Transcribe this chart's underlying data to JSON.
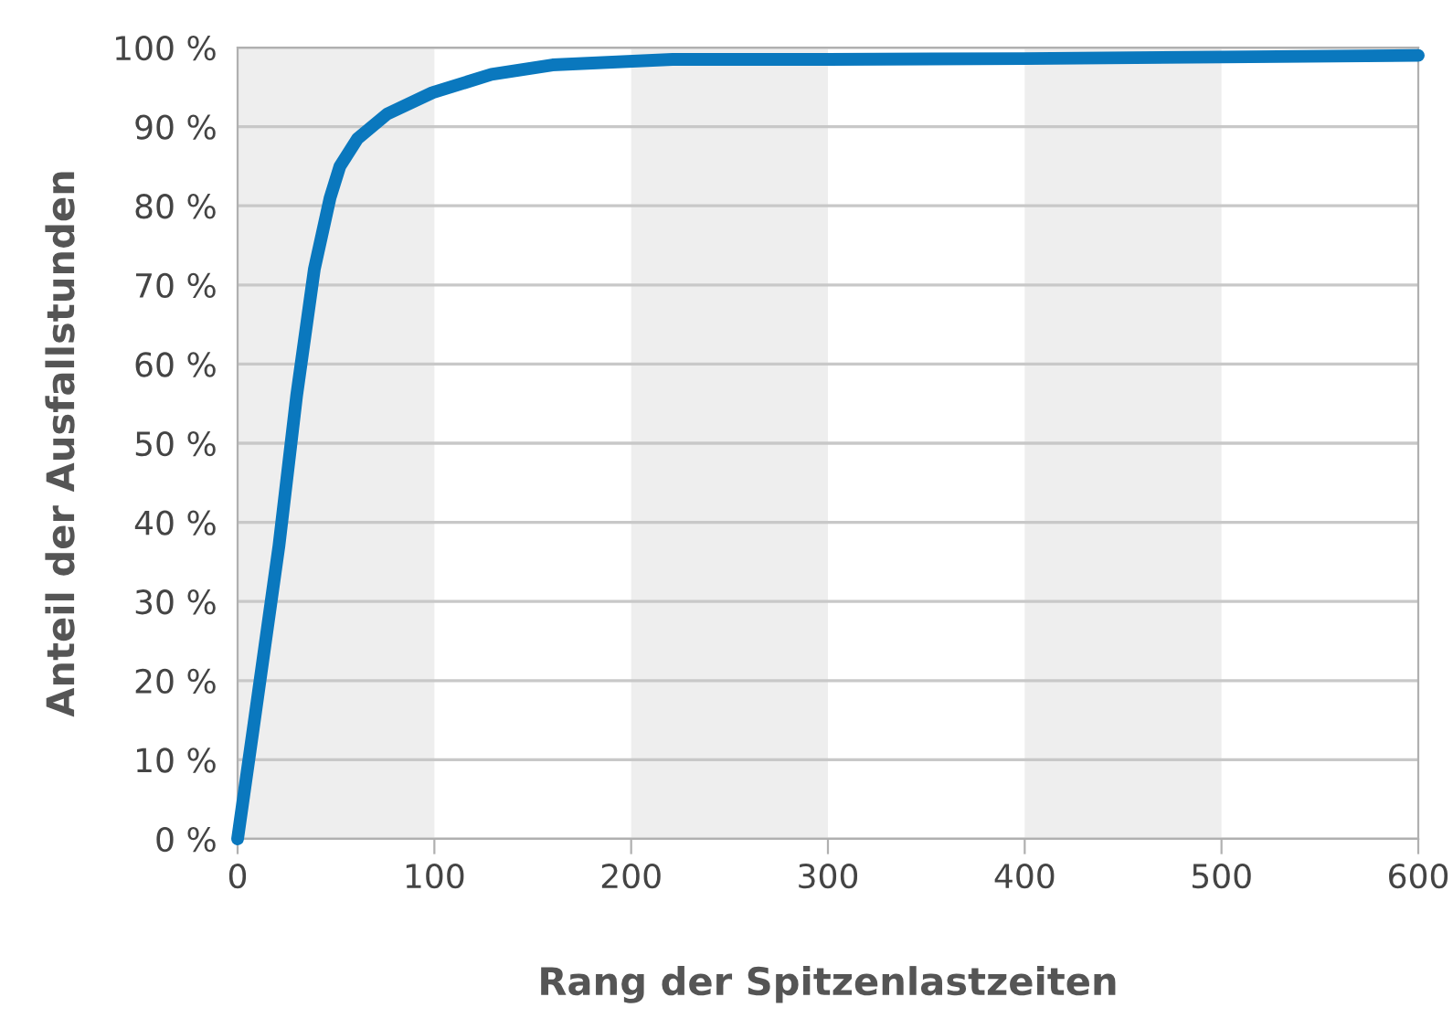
{
  "chart_data": {
    "type": "line",
    "xlabel": "Rang der Spitzenlastzeiten",
    "ylabel": "Anteil der Ausfallstunden",
    "x": [
      0,
      8,
      21,
      30,
      39,
      47,
      52,
      61,
      76,
      99,
      129,
      160,
      221,
      300,
      400,
      500,
      600
    ],
    "series": [
      {
        "color": "#0a78be",
        "values": [
          0,
          14,
          37,
          56,
          72,
          81,
          85,
          88.5,
          91.6,
          94.3,
          96.6,
          97.8,
          98.5,
          98.5,
          98.6,
          98.8,
          99
        ]
      }
    ],
    "xlim": [
      0,
      600
    ],
    "xticks": [
      0,
      100,
      200,
      300,
      400,
      500,
      600
    ],
    "ylim": [
      0,
      100
    ],
    "yticks": [
      {
        "value": 0,
        "label": "0 %"
      },
      {
        "value": 10,
        "label": "10 %"
      },
      {
        "value": 20,
        "label": "20 %"
      },
      {
        "value": 30,
        "label": "30 %"
      },
      {
        "value": 40,
        "label": "40 %"
      },
      {
        "value": 50,
        "label": "50 %"
      },
      {
        "value": 60,
        "label": "60 %"
      },
      {
        "value": 70,
        "label": "70 %"
      },
      {
        "value": 80,
        "label": "80 %"
      },
      {
        "value": 90,
        "label": "90 %"
      },
      {
        "value": 100,
        "label": "100 %"
      }
    ],
    "grid": "y",
    "legend": false,
    "marker": "none",
    "line_style": "solid",
    "bands": [
      {
        "axis": "x",
        "from": 0,
        "to": 100,
        "color": "#eeeeee"
      },
      {
        "axis": "x",
        "from": 200,
        "to": 300,
        "color": "#eeeeee"
      },
      {
        "axis": "x",
        "from": 400,
        "to": 500,
        "color": "#eeeeee"
      }
    ]
  }
}
